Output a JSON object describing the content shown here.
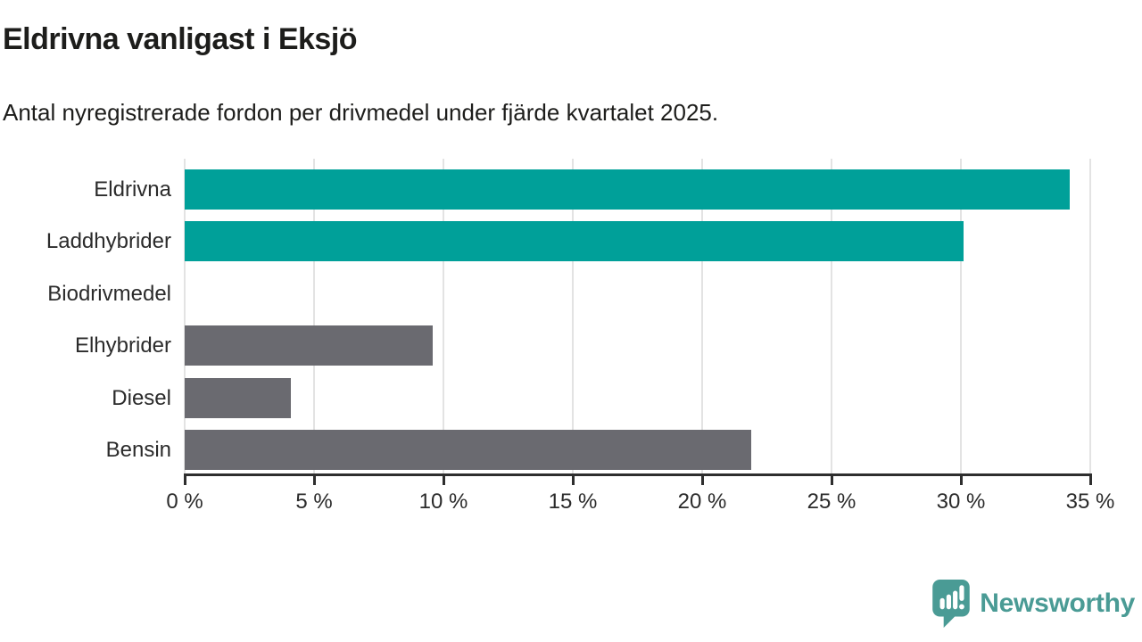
{
  "title": "Eldrivna vanligast i Eksjö",
  "subtitle": "Antal nyregistrerade fordon per drivmedel under fjärde kvartalet 2025.",
  "footer": {
    "brand": "Newsworthy"
  },
  "colors": {
    "highlight_bar": "#00A099",
    "default_bar": "#6A6A70",
    "axis": "#2E2E2E",
    "gridline": "#E3E3E3",
    "label_text": "#2B2B2B",
    "title_text": "#1D1D1B",
    "brand_teal": "#4A9B95",
    "background": "#FFFFFF"
  },
  "chart_data": {
    "type": "bar",
    "orientation": "horizontal",
    "title": "Eldrivna vanligast i Eksjö",
    "subtitle": "Antal nyregistrerade fordon per drivmedel under fjärde kvartalet 2025.",
    "categories": [
      "Eldrivna",
      "Laddhybrider",
      "Biodrivmedel",
      "Elhybrider",
      "Diesel",
      "Bensin"
    ],
    "values": [
      34.2,
      30.1,
      0,
      9.6,
      4.1,
      21.9
    ],
    "unit": "%",
    "bar_colors": [
      "#00A099",
      "#00A099",
      "#6A6A70",
      "#6A6A70",
      "#6A6A70",
      "#6A6A70"
    ],
    "xlim": [
      0,
      35
    ],
    "x_ticks": [
      0,
      5,
      10,
      15,
      20,
      25,
      30,
      35
    ],
    "x_tick_labels": [
      "0 %",
      "5 %",
      "10 %",
      "15 %",
      "20 %",
      "25 %",
      "30 %",
      "35 %"
    ],
    "grid": true,
    "legend": false,
    "xlabel": "",
    "ylabel": ""
  }
}
